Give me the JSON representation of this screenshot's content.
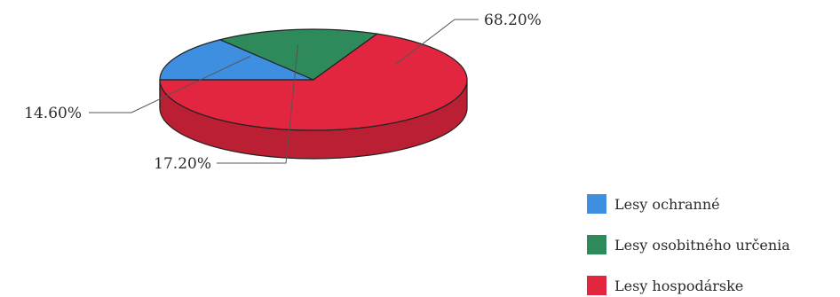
{
  "chart_data": {
    "type": "pie",
    "style": "3d",
    "legend_position": "bottom-right",
    "series": [
      {
        "name": "Lesy ochranné",
        "value": 14.6,
        "label": "14.60%",
        "color": "#3f8fe0"
      },
      {
        "name": "Lesy osobitného určenia",
        "value": 17.2,
        "label": "17.20%",
        "color": "#2e8a5a"
      },
      {
        "name": "Lesy hospodárske",
        "value": 68.2,
        "label": "68.20%",
        "color": "#e3263f"
      }
    ]
  }
}
